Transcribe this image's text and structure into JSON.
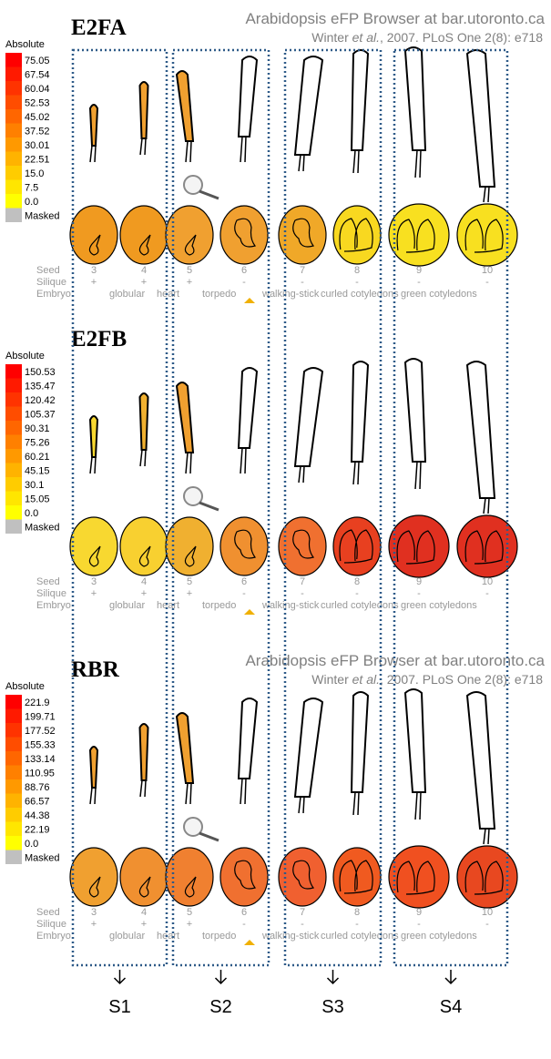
{
  "panels": [
    {
      "gene": "E2FA",
      "header": {
        "title": "Arabidopsis eFP Browser at bar.utoronto.ca",
        "citation": [
          "Winter ",
          "et al.",
          ", 2007. PLoS One 2(8): e718"
        ]
      },
      "legend": {
        "title": "Absolute",
        "values": [
          "75.05",
          "67.54",
          "60.04",
          "52.53",
          "45.02",
          "37.52",
          "30.01",
          "22.51",
          "15.0",
          "7.5",
          "0.0"
        ],
        "masked": "Masked"
      },
      "samples": {
        "row_labels": [
          "Seed",
          "Silique",
          "Embryo"
        ],
        "seeds": [
          "3",
          "4",
          "5",
          "6",
          "7",
          "8",
          "9",
          "10"
        ],
        "silique": [
          "+",
          "+",
          "+",
          "-",
          "-",
          "-",
          "-",
          "-"
        ],
        "embryo": [
          "globular",
          "heart",
          "torpedo",
          "walking-stick",
          "curled cotyledons",
          "green cotyledons"
        ]
      },
      "silique_colors": [
        "#f0a030",
        "#f0a030",
        "#f0a030"
      ],
      "seed_colors": [
        "#f09a20",
        "#f09a20",
        "#f0a030",
        "#f0a030",
        "#f0a828",
        "#f8d820",
        "#f8e020",
        "#f8e020"
      ]
    },
    {
      "gene": "E2FB",
      "legend": {
        "title": "Absolute",
        "values": [
          "150.53",
          "135.47",
          "120.42",
          "105.37",
          "90.31",
          "75.26",
          "60.21",
          "45.15",
          "30.1",
          "15.05",
          "0.0"
        ],
        "masked": "Masked"
      },
      "samples": {
        "row_labels": [
          "Seed",
          "Silique",
          "Embryo"
        ],
        "seeds": [
          "3",
          "4",
          "5",
          "6",
          "7",
          "8",
          "9",
          "10"
        ],
        "silique": [
          "+",
          "+",
          "+",
          "-",
          "-",
          "-",
          "-",
          "-"
        ],
        "embryo": [
          "globular",
          "heart",
          "torpedo",
          "walking-stick",
          "curled cotyledons",
          "green cotyledons"
        ]
      },
      "silique_colors": [
        "#f8d830",
        "#f0b030",
        "#f0a030"
      ],
      "seed_colors": [
        "#f8d830",
        "#f8d030",
        "#f0b030",
        "#f09030",
        "#f07030",
        "#e84020",
        "#e03020",
        "#e03020"
      ]
    },
    {
      "gene": "RBR",
      "header": {
        "title": "Arabidopsis eFP Browser at bar.utoronto.ca",
        "citation": [
          "Winter ",
          "et al.",
          ", 2007. PLoS One 2(8): e718"
        ]
      },
      "legend": {
        "title": "Absolute",
        "values": [
          "221.9",
          "199.71",
          "177.52",
          "155.33",
          "133.14",
          "110.95",
          "88.76",
          "66.57",
          "44.38",
          "22.19",
          "0.0"
        ],
        "masked": "Masked"
      },
      "samples": {
        "row_labels": [
          "Seed",
          "Silique",
          "Embryo"
        ],
        "seeds": [
          "3",
          "4",
          "5",
          "6",
          "7",
          "8",
          "9",
          "10"
        ],
        "silique": [
          "+",
          "+",
          "+",
          "-",
          "-",
          "-",
          "-",
          "-"
        ],
        "embryo": [
          "globular",
          "heart",
          "torpedo",
          "walking-stick",
          "curled cotyledons",
          "green cotyledons"
        ]
      },
      "silique_colors": [
        "#f0a030",
        "#f0a030",
        "#f0a030"
      ],
      "seed_colors": [
        "#f0a030",
        "#f09030",
        "#f08030",
        "#f07030",
        "#f06030",
        "#f05a20",
        "#f05020",
        "#e84820"
      ]
    }
  ],
  "stages": [
    "S1",
    "S2",
    "S3",
    "S4"
  ]
}
